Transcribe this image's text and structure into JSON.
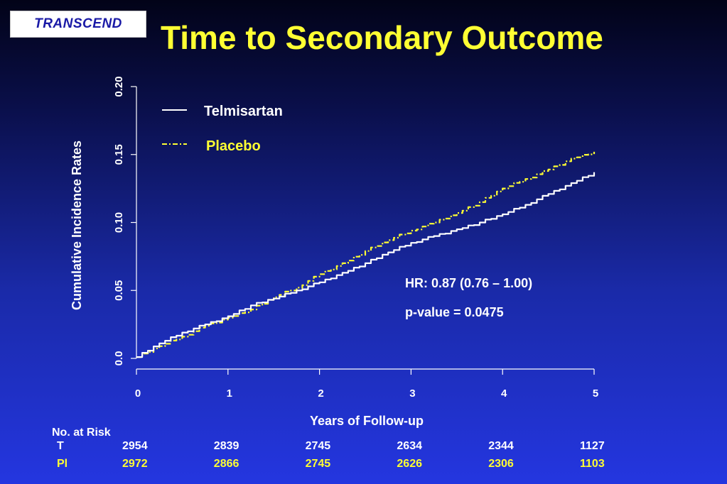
{
  "header": {
    "logo_text": "TRANSCEND",
    "title": "Time to Secondary Outcome"
  },
  "chart_data": {
    "type": "line",
    "title": "Time to Secondary Outcome",
    "xlabel": "Years of Follow-up",
    "ylabel": "Cumulative Incidence Rates",
    "xlim": [
      0,
      5
    ],
    "ylim": [
      0,
      0.2
    ],
    "xticks": [
      "0",
      "1",
      "2",
      "3",
      "4",
      "5"
    ],
    "yticks": [
      "0.0",
      "0.05",
      "0.10",
      "0.15",
      "0.20"
    ],
    "grid": false,
    "legend_position": "top-left",
    "series": [
      {
        "name": "Telmisartan",
        "color": "#ffffff",
        "style": "solid",
        "x": [
          0,
          0.25,
          0.5,
          0.75,
          1.0,
          1.25,
          1.5,
          1.75,
          2.0,
          2.25,
          2.5,
          2.75,
          3.0,
          3.25,
          3.5,
          3.75,
          4.0,
          4.25,
          4.5,
          4.75,
          5.0
        ],
        "y": [
          0.001,
          0.011,
          0.019,
          0.025,
          0.031,
          0.039,
          0.044,
          0.05,
          0.056,
          0.063,
          0.07,
          0.078,
          0.085,
          0.09,
          0.095,
          0.1,
          0.106,
          0.113,
          0.121,
          0.129,
          0.137
        ]
      },
      {
        "name": "Placebo",
        "color": "#ffff33",
        "style": "dot-dash",
        "x": [
          0,
          0.25,
          0.5,
          0.75,
          1.0,
          1.25,
          1.5,
          1.75,
          2.0,
          2.25,
          2.5,
          2.75,
          3.0,
          3.25,
          3.5,
          3.75,
          4.0,
          4.25,
          4.5,
          4.75,
          5.0
        ],
        "y": [
          0.001,
          0.009,
          0.016,
          0.024,
          0.03,
          0.036,
          0.045,
          0.052,
          0.062,
          0.07,
          0.079,
          0.087,
          0.094,
          0.1,
          0.107,
          0.115,
          0.125,
          0.132,
          0.139,
          0.147,
          0.152
        ]
      }
    ],
    "annotations": [
      "HR: 0.87 (0.76 – 1.00)",
      "p-value = 0.0475"
    ]
  },
  "risk_table": {
    "header": "No. at Risk",
    "rows": [
      {
        "label": "T",
        "values": [
          "2954",
          "2839",
          "2745",
          "2634",
          "2344",
          "1127"
        ]
      },
      {
        "label": "Pl",
        "values": [
          "2972",
          "2866",
          "2745",
          "2626",
          "2306",
          "1103"
        ]
      }
    ]
  }
}
